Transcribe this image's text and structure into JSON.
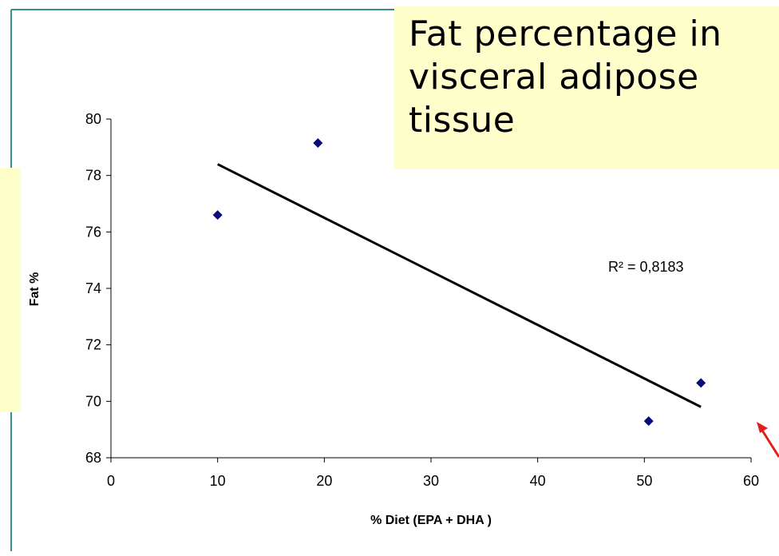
{
  "slide": {
    "title": "Fat percentage in visceral adipose tissue",
    "colors": {
      "frame": "#3a8f86",
      "note_fill": "#ffffcc",
      "marker": "#0a0a7a",
      "trendline": "#000000",
      "arrow": "#e0201a"
    }
  },
  "chart_data": {
    "type": "scatter",
    "title": "",
    "xlabel": "% Diet (EPA + DHA )",
    "ylabel": "Fat %",
    "xlim": [
      0,
      60
    ],
    "ylim": [
      68,
      80
    ],
    "xticks": [
      0,
      10,
      20,
      30,
      40,
      50,
      60
    ],
    "yticks": [
      68,
      70,
      72,
      74,
      76,
      78,
      80
    ],
    "grid": false,
    "series": [
      {
        "points": [
          {
            "x": 10,
            "y": 76.6
          },
          {
            "x": 19.4,
            "y": 79.15
          },
          {
            "x": 50.4,
            "y": 69.3
          },
          {
            "x": 55.3,
            "y": 70.65
          }
        ]
      }
    ],
    "trendline": {
      "type": "linear",
      "x_start": 10,
      "y_start": 78.4,
      "x_end": 55.3,
      "y_end": 69.8
    },
    "annotation": "R² = 0,8183"
  }
}
